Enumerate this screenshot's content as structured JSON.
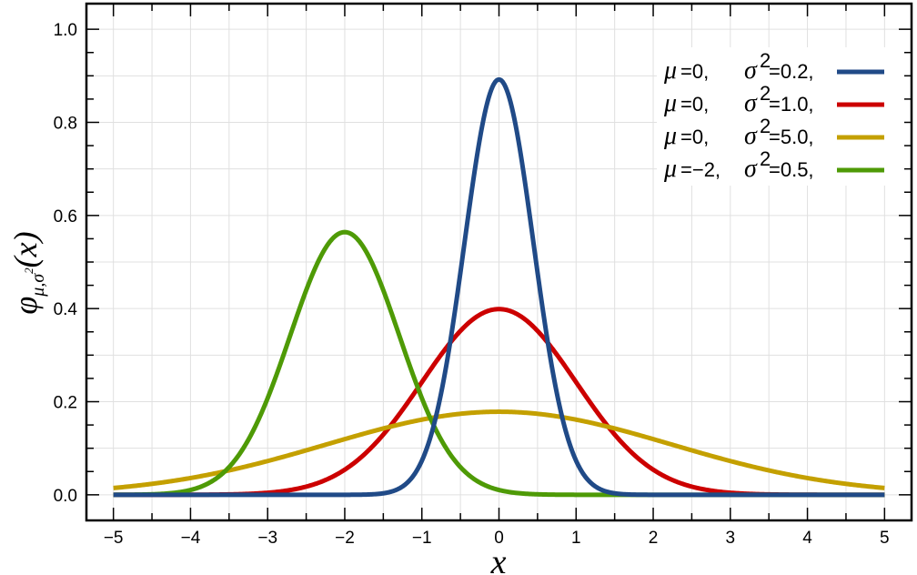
{
  "chart_data": {
    "type": "line",
    "xlabel": "x",
    "ylabel": {
      "main": "φ",
      "sub": "μ,σ",
      "sup": "2",
      "arg": "(x)"
    },
    "xlim": [
      -5.35,
      5.35
    ],
    "ylim": [
      -0.055,
      1.055
    ],
    "x_ticks": [
      -5,
      -4,
      -3,
      -2,
      -1,
      0,
      1,
      2,
      3,
      4,
      5
    ],
    "x_tick_labels": [
      "−5",
      "−4",
      "−3",
      "−2",
      "−1",
      "0",
      "1",
      "2",
      "3",
      "4",
      "5"
    ],
    "y_ticks": [
      0.0,
      0.2,
      0.4,
      0.6,
      0.8,
      1.0
    ],
    "y_tick_labels": [
      "0.0",
      "0.2",
      "0.4",
      "0.6",
      "0.8",
      "1.0"
    ],
    "grid": true,
    "legend_position": "top-right",
    "series": [
      {
        "mu": 0,
        "variance": 0.2,
        "color": "#204a87",
        "legend": {
          "mu_label": "μ",
          "mu_value": "=0,",
          "sigma_label": "σ",
          "sigma_sup": "2",
          "sigma_value": "=0.2,"
        }
      },
      {
        "mu": 0,
        "variance": 1.0,
        "color": "#cc0000",
        "legend": {
          "mu_label": "μ",
          "mu_value": "=0,",
          "sigma_label": "σ",
          "sigma_sup": "2",
          "sigma_value": "=1.0,"
        }
      },
      {
        "mu": 0,
        "variance": 5.0,
        "color": "#c4a000",
        "legend": {
          "mu_label": "μ",
          "mu_value": "=0,",
          "sigma_label": "σ",
          "sigma_sup": "2",
          "sigma_value": "=5.0,"
        }
      },
      {
        "mu": -2,
        "variance": 0.5,
        "color": "#4e9a06",
        "legend": {
          "mu_label": "μ",
          "mu_value": "=−2,",
          "sigma_label": "σ",
          "sigma_sup": "2",
          "sigma_value": "=0.5,"
        }
      }
    ]
  }
}
